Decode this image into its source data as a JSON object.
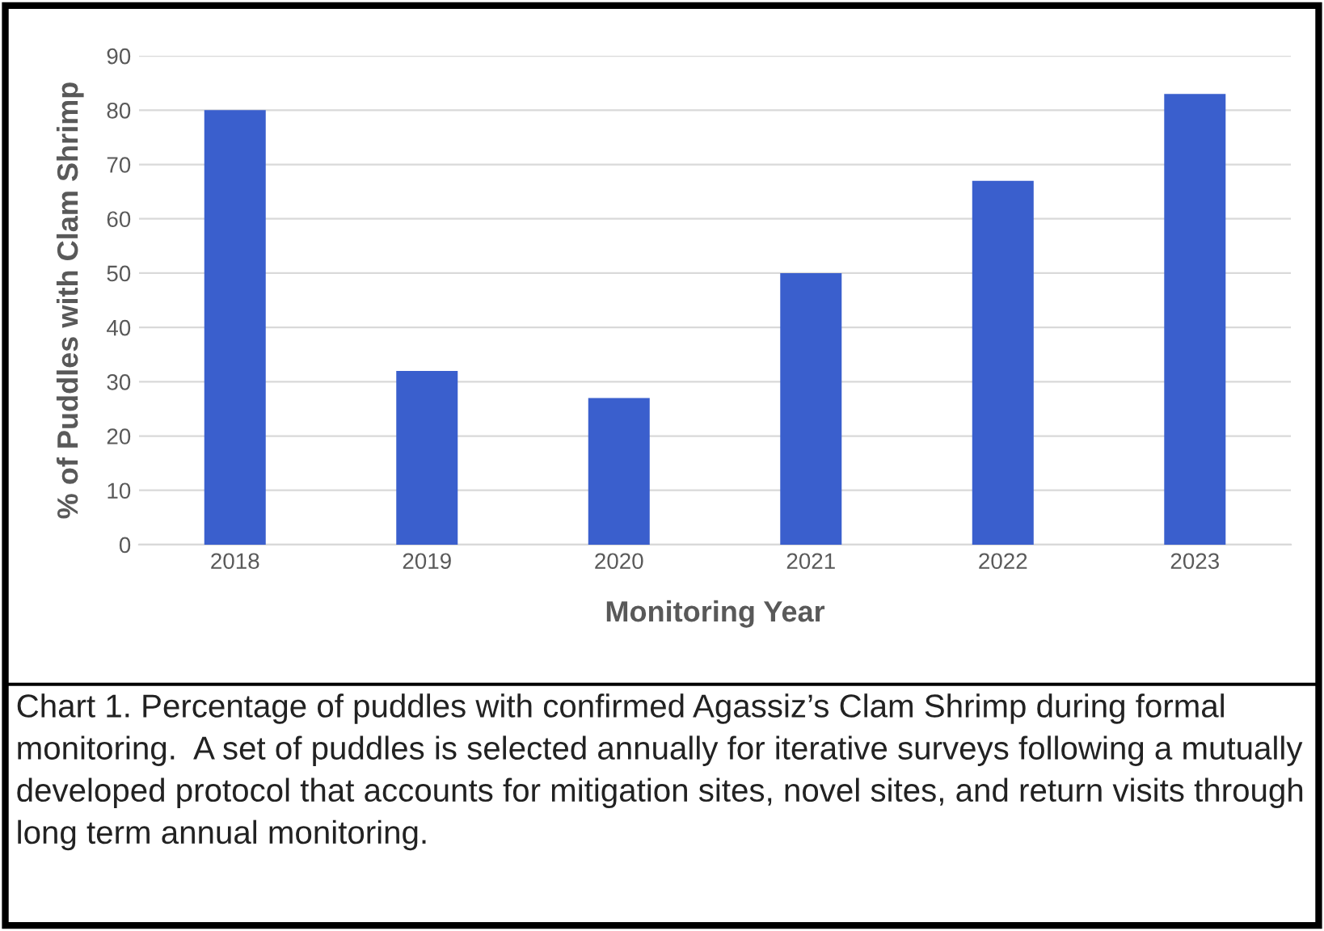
{
  "chart_data": {
    "type": "bar",
    "categories": [
      "2018",
      "2019",
      "2020",
      "2021",
      "2022",
      "2023"
    ],
    "values": [
      80,
      32,
      27,
      50,
      67,
      83
    ],
    "color": "#3a5fcd",
    "xlabel": "Monitoring Year",
    "ylabel": "% of Puddles with Clam Shrimp",
    "ylim": [
      0,
      90
    ],
    "yticks": [
      0,
      10,
      20,
      30,
      40,
      50,
      60,
      70,
      80,
      90
    ],
    "grid": "y",
    "annotations": [
      "Chart 1. Percentage of puddles with confirmed Agassiz’s Clam Shrimp during formal monitoring.  A set of puddles is selected annually for iterative surveys following a mutually developed protocol that accounts for mitigation sites, novel sites, and return visits through long term annual monitoring."
    ]
  }
}
